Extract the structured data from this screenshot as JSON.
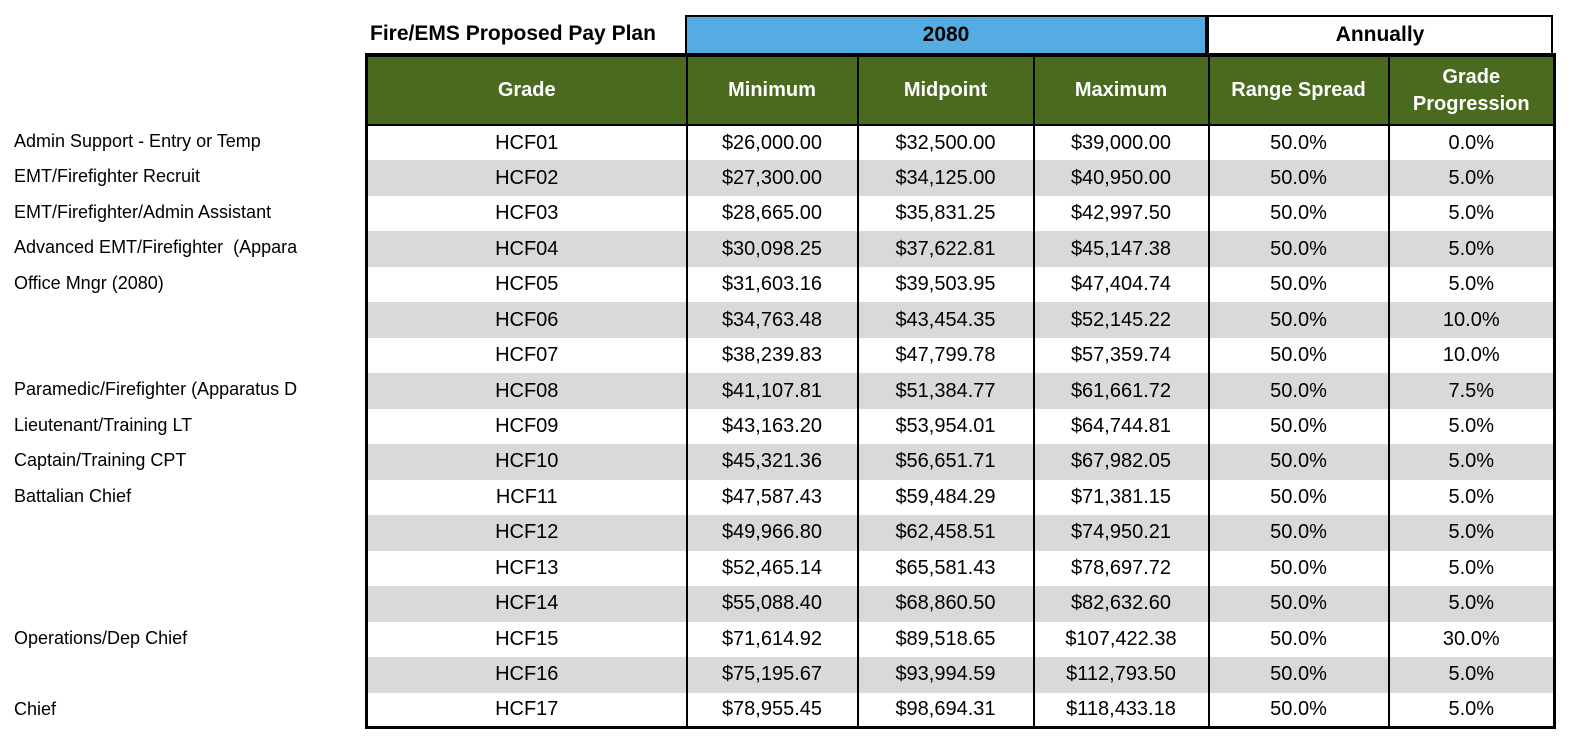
{
  "title": "Fire/EMS Proposed Pay Plan",
  "header": {
    "hours_group": "2080",
    "annual_group": "Annually",
    "columns": [
      "Grade",
      "Minimum",
      "Midpoint",
      "Maximum",
      "Range Spread",
      "Grade Progression"
    ]
  },
  "colors": {
    "header_green": "#4A6A1F",
    "band_blue": "#55ACE3",
    "row_alt_gray": "#D9D9D9",
    "border_black": "#000000"
  },
  "rows": [
    {
      "label": "Admin Support - Entry or Temp",
      "grade": "HCF01",
      "minimum": "$26,000.00",
      "midpoint": "$32,500.00",
      "maximum": "$39,000.00",
      "range_spread": "50.0%",
      "grade_progression": "0.0%"
    },
    {
      "label": "EMT/Firefighter Recruit",
      "grade": "HCF02",
      "minimum": "$27,300.00",
      "midpoint": "$34,125.00",
      "maximum": "$40,950.00",
      "range_spread": "50.0%",
      "grade_progression": "5.0%"
    },
    {
      "label": "EMT/Firefighter/Admin Assistant",
      "grade": "HCF03",
      "minimum": "$28,665.00",
      "midpoint": "$35,831.25",
      "maximum": "$42,997.50",
      "range_spread": "50.0%",
      "grade_progression": "5.0%"
    },
    {
      "label": "Advanced EMT/Firefighter  (Appara",
      "grade": "HCF04",
      "minimum": "$30,098.25",
      "midpoint": "$37,622.81",
      "maximum": "$45,147.38",
      "range_spread": "50.0%",
      "grade_progression": "5.0%"
    },
    {
      "label": "Office Mngr (2080)",
      "grade": "HCF05",
      "minimum": "$31,603.16",
      "midpoint": "$39,503.95",
      "maximum": "$47,404.74",
      "range_spread": "50.0%",
      "grade_progression": "5.0%"
    },
    {
      "label": "",
      "grade": "HCF06",
      "minimum": "$34,763.48",
      "midpoint": "$43,454.35",
      "maximum": "$52,145.22",
      "range_spread": "50.0%",
      "grade_progression": "10.0%"
    },
    {
      "label": "",
      "grade": "HCF07",
      "minimum": "$38,239.83",
      "midpoint": "$47,799.78",
      "maximum": "$57,359.74",
      "range_spread": "50.0%",
      "grade_progression": "10.0%"
    },
    {
      "label": "Paramedic/Firefighter (Apparatus D",
      "grade": "HCF08",
      "minimum": "$41,107.81",
      "midpoint": "$51,384.77",
      "maximum": "$61,661.72",
      "range_spread": "50.0%",
      "grade_progression": "7.5%"
    },
    {
      "label": "Lieutenant/Training LT",
      "grade": "HCF09",
      "minimum": "$43,163.20",
      "midpoint": "$53,954.01",
      "maximum": "$64,744.81",
      "range_spread": "50.0%",
      "grade_progression": "5.0%"
    },
    {
      "label": "Captain/Training CPT",
      "grade": "HCF10",
      "minimum": "$45,321.36",
      "midpoint": "$56,651.71",
      "maximum": "$67,982.05",
      "range_spread": "50.0%",
      "grade_progression": "5.0%"
    },
    {
      "label": "Battalian Chief",
      "grade": "HCF11",
      "minimum": "$47,587.43",
      "midpoint": "$59,484.29",
      "maximum": "$71,381.15",
      "range_spread": "50.0%",
      "grade_progression": "5.0%"
    },
    {
      "label": "",
      "grade": "HCF12",
      "minimum": "$49,966.80",
      "midpoint": "$62,458.51",
      "maximum": "$74,950.21",
      "range_spread": "50.0%",
      "grade_progression": "5.0%"
    },
    {
      "label": "",
      "grade": "HCF13",
      "minimum": "$52,465.14",
      "midpoint": "$65,581.43",
      "maximum": "$78,697.72",
      "range_spread": "50.0%",
      "grade_progression": "5.0%"
    },
    {
      "label": "",
      "grade": "HCF14",
      "minimum": "$55,088.40",
      "midpoint": "$68,860.50",
      "maximum": "$82,632.60",
      "range_spread": "50.0%",
      "grade_progression": "5.0%"
    },
    {
      "label": "Operations/Dep Chief",
      "grade": "HCF15",
      "minimum": "$71,614.92",
      "midpoint": "$89,518.65",
      "maximum": "$107,422.38",
      "range_spread": "50.0%",
      "grade_progression": "30.0%"
    },
    {
      "label": "",
      "grade": "HCF16",
      "minimum": "$75,195.67",
      "midpoint": "$93,994.59",
      "maximum": "$112,793.50",
      "range_spread": "50.0%",
      "grade_progression": "5.0%"
    },
    {
      "label": "Chief",
      "grade": "HCF17",
      "minimum": "$78,955.45",
      "midpoint": "$98,694.31",
      "maximum": "$118,433.18",
      "range_spread": "50.0%",
      "grade_progression": "5.0%"
    }
  ]
}
